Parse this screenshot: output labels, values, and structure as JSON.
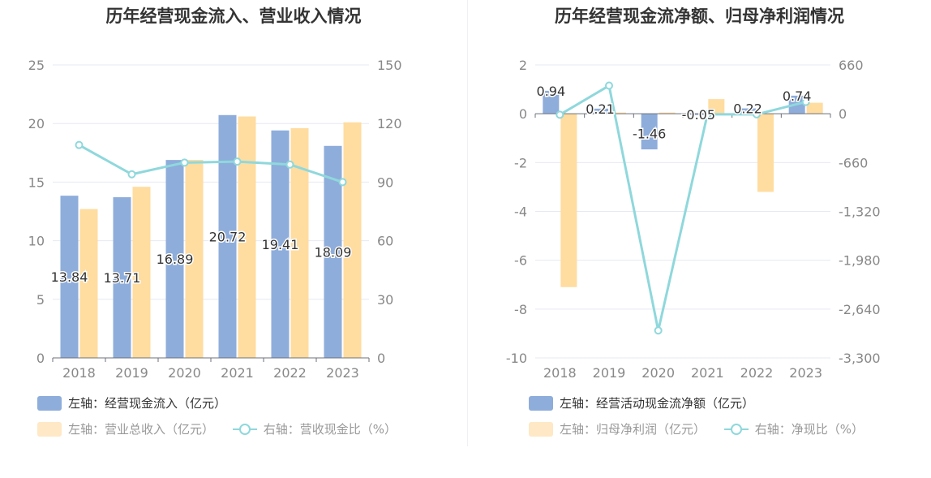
{
  "colors": {
    "bar_primary": "#8eaddb",
    "bar_secondary": "#ffdca0",
    "line": "#8fd8dc"
  },
  "left": {
    "title": "历年经营现金流入、营业收入情况",
    "legend": {
      "bar1": "左轴：经营现金流入（亿元）",
      "bar2": "左轴：营业总收入（亿元）",
      "line": "右轴：营收现金比（%）"
    }
  },
  "right": {
    "title": "历年经营现金流净额、归母净利润情况",
    "legend": {
      "bar1": "左轴：经营活动现金流净额（亿元）",
      "bar2": "左轴：归母净利润（亿元）",
      "line": "右轴：净现比（%）"
    }
  },
  "chart_data": [
    {
      "type": "bar",
      "title": "历年经营现金流入、营业收入情况",
      "categories": [
        "2018",
        "2019",
        "2020",
        "2021",
        "2022",
        "2023"
      ],
      "ylim_left": [
        0,
        25
      ],
      "ylim_right": [
        0,
        150
      ],
      "yticks_left": [
        0,
        5,
        10,
        15,
        20,
        25
      ],
      "yticks_right": [
        0,
        30,
        60,
        90,
        120,
        150
      ],
      "grid": true,
      "legend_position": "bottom-left",
      "series": [
        {
          "name": "左轴：经营现金流入（亿元）",
          "axis": "left",
          "kind": "bar",
          "values": [
            13.84,
            13.71,
            16.89,
            20.72,
            19.41,
            18.09
          ],
          "labels": [
            "13.84",
            "13.71",
            "16.89",
            "20.72",
            "19.41",
            "18.09"
          ]
        },
        {
          "name": "左轴：营业总收入（亿元）",
          "axis": "left",
          "kind": "bar",
          "values": [
            12.7,
            14.6,
            16.9,
            20.6,
            19.6,
            20.1
          ]
        },
        {
          "name": "右轴：营收现金比（%）",
          "axis": "right",
          "kind": "line",
          "values": [
            109,
            94,
            100,
            100.5,
            99,
            90
          ]
        }
      ]
    },
    {
      "type": "bar",
      "title": "历年经营现金流净额、归母净利润情况",
      "categories": [
        "2018",
        "2019",
        "2020",
        "2021",
        "2022",
        "2023"
      ],
      "ylim_left": [
        -10,
        2
      ],
      "ylim_right": [
        -3300,
        660
      ],
      "yticks_left": [
        -10,
        -8,
        -6,
        -4,
        -2,
        0,
        2
      ],
      "yticks_right": [
        -3300,
        -2640,
        -1980,
        -1320,
        -660,
        0,
        660
      ],
      "yticklabels_right": [
        "-3,300",
        "-2,640",
        "-1,980",
        "-1,320",
        "-660",
        "0",
        "660"
      ],
      "grid": true,
      "legend_position": "bottom-left",
      "series": [
        {
          "name": "左轴：经营活动现金流净额（亿元）",
          "axis": "left",
          "kind": "bar",
          "values": [
            0.94,
            0.21,
            -1.46,
            -0.05,
            0.22,
            0.74
          ],
          "labels": [
            "0.94",
            "0.21",
            "-1.46",
            "-0.05",
            "0.22",
            "0.74"
          ]
        },
        {
          "name": "左轴：归母净利润（亿元）",
          "axis": "left",
          "kind": "bar",
          "values": [
            -7.1,
            0.05,
            0.05,
            0.6,
            -3.2,
            0.45
          ]
        },
        {
          "name": "右轴：净现比（%）",
          "axis": "right",
          "kind": "line",
          "values": [
            -13,
            380,
            -2930,
            -8,
            -8,
            160
          ]
        }
      ]
    }
  ]
}
